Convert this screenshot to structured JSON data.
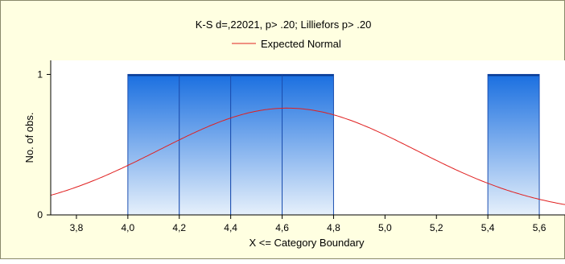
{
  "chart_data": {
    "type": "bar",
    "title": "K-S d=,22021, p> .20; Lilliefors p> .20",
    "legend": {
      "placement": "top-center",
      "entries": [
        {
          "name": "Expected Normal",
          "color": "#e02020"
        }
      ]
    },
    "xlabel": "X <= Category Boundary",
    "ylabel": "No. of obs.",
    "xlim": [
      3.7,
      5.7
    ],
    "ylim": [
      0,
      1.1
    ],
    "grid": false,
    "x_ticks": [
      3.8,
      4.0,
      4.2,
      4.4,
      4.6,
      4.8,
      5.0,
      5.2,
      5.4,
      5.6
    ],
    "x_tick_labels": [
      "3,8",
      "4,0",
      "4,2",
      "4,4",
      "4,6",
      "4,8",
      "5,0",
      "5,2",
      "5,4",
      "5,6"
    ],
    "y_ticks": [
      0,
      1
    ],
    "y_tick_labels": [
      "0",
      "1"
    ],
    "bins": [
      {
        "from": 3.8,
        "to": 4.0,
        "count": 0
      },
      {
        "from": 4.0,
        "to": 4.2,
        "count": 1
      },
      {
        "from": 4.2,
        "to": 4.4,
        "count": 1
      },
      {
        "from": 4.4,
        "to": 4.6,
        "count": 1
      },
      {
        "from": 4.6,
        "to": 4.8,
        "count": 1
      },
      {
        "from": 4.8,
        "to": 5.0,
        "count": 0
      },
      {
        "from": 5.0,
        "to": 5.2,
        "count": 0
      },
      {
        "from": 5.2,
        "to": 5.4,
        "count": 0
      },
      {
        "from": 5.4,
        "to": 5.6,
        "count": 1
      }
    ],
    "expected_normal": {
      "mean": 4.62,
      "sd": 0.5,
      "peak": 0.76
    },
    "colors": {
      "background": "#ffffe1",
      "plot_background": "#ffffff",
      "bar_top": "#1a6fe0",
      "bar_bottom": "#e6f0fb",
      "bar_edge": "#1c4fb0",
      "curve": "#e02020"
    }
  }
}
